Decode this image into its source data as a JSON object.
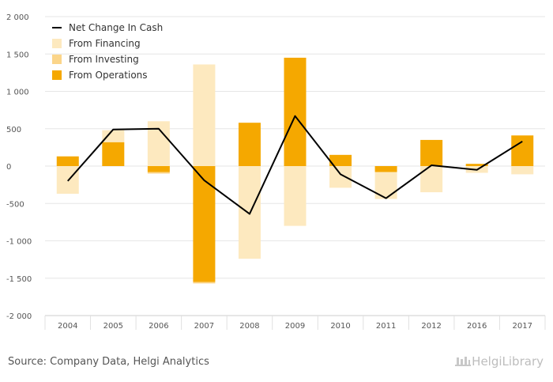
{
  "chart_data": {
    "type": "bar",
    "stacked": true,
    "categories": [
      "2004",
      "2005",
      "2006",
      "2007",
      "2008",
      "2009",
      "2010",
      "2011",
      "2012",
      "2016",
      "2017"
    ],
    "series": [
      {
        "name": "From Operations",
        "kind": "bar",
        "color": "#f5a800",
        "values": [
          130,
          320,
          -80,
          -1550,
          580,
          1450,
          150,
          -80,
          350,
          30,
          410
        ]
      },
      {
        "name": "From Investing",
        "kind": "bar",
        "color": "#fbd58a",
        "values": [
          0,
          0,
          -20,
          -20,
          0,
          0,
          0,
          0,
          0,
          0,
          0
        ]
      },
      {
        "name": "From Financing",
        "kind": "bar",
        "color": "#fde9bf",
        "values": [
          -370,
          160,
          600,
          1360,
          -1240,
          -800,
          -290,
          -360,
          -350,
          -90,
          -110
        ]
      },
      {
        "name": "Net Change In Cash",
        "kind": "line",
        "color": "#000000",
        "values": [
          -200,
          490,
          500,
          -190,
          -640,
          670,
          -110,
          -430,
          10,
          -50,
          330
        ]
      }
    ],
    "y_ticks": [
      "2 000",
      "1 500",
      "1 000",
      "500",
      "0",
      "-500",
      "-1 000",
      "-1 500",
      "-2 000"
    ],
    "ylim": [
      -2000,
      2000
    ],
    "grid": true,
    "legend_position": "top-left"
  },
  "legend": {
    "items": [
      {
        "label": "Net Change In Cash",
        "color": "#000000",
        "shape": "line"
      },
      {
        "label": "From Financing",
        "color": "#fde9bf",
        "shape": "square"
      },
      {
        "label": "From Investing",
        "color": "#fbd58a",
        "shape": "square"
      },
      {
        "label": "From Operations",
        "color": "#f5a800",
        "shape": "square"
      }
    ]
  },
  "footer": {
    "source": "Source: Company Data, Helgi Analytics",
    "brand": "HelgiLibrary"
  }
}
